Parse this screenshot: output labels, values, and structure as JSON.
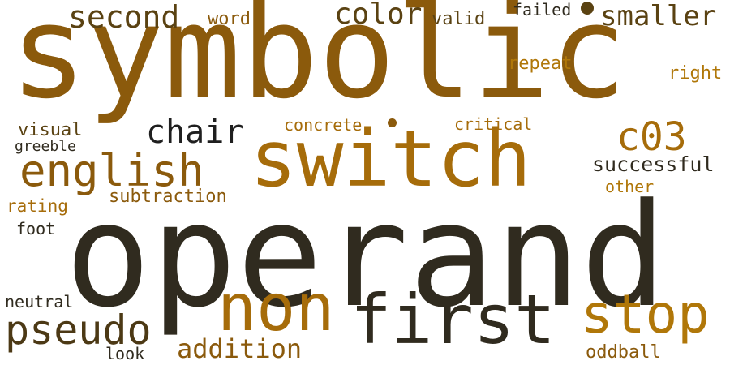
{
  "palette": {
    "dark": "#302b1f",
    "brown": "#8b5a0c",
    "gold": "#b07709",
    "olive": "#5a4212",
    "black": "#1f1f1f"
  },
  "words": [
    {
      "text": "symbolic",
      "color": "#8b5a0c"
    },
    {
      "text": "operand",
      "color": "#302b1f"
    },
    {
      "text": "switch",
      "color": "#a66c0a"
    },
    {
      "text": "first",
      "color": "#302b1f"
    },
    {
      "text": "non",
      "color": "#a66c0a"
    },
    {
      "text": "stop",
      "color": "#b07709"
    },
    {
      "text": "pseudo",
      "color": "#4c3915"
    },
    {
      "text": "english",
      "color": "#8b5a0c"
    },
    {
      "text": "c03",
      "color": "#a66c0a"
    },
    {
      "text": "chair",
      "color": "#1f1f1f"
    },
    {
      "text": "second",
      "color": "#5a4212"
    },
    {
      "text": "color",
      "color": "#5a4212"
    },
    {
      "text": "smaller",
      "color": "#5a4212"
    },
    {
      "text": "addition",
      "color": "#8b5a0c"
    },
    {
      "text": "successful",
      "color": "#302b1f"
    },
    {
      "text": "subtraction",
      "color": "#8b5a0c"
    },
    {
      "text": "concrete",
      "color": "#a66c0a"
    },
    {
      "text": "critical",
      "color": "#a66c0a"
    },
    {
      "text": "visual",
      "color": "#5a4212"
    },
    {
      "text": "greeble",
      "color": "#302b1f"
    },
    {
      "text": "rating",
      "color": "#a66c0a"
    },
    {
      "text": "foot",
      "color": "#302b1f"
    },
    {
      "text": "neutral",
      "color": "#302b1f"
    },
    {
      "text": "look",
      "color": "#302b1f"
    },
    {
      "text": "oddball",
      "color": "#8b5a0c"
    },
    {
      "text": "other",
      "color": "#b07709"
    },
    {
      "text": "right",
      "color": "#b07709"
    },
    {
      "text": "repeat",
      "color": "#b07709"
    },
    {
      "text": "word",
      "color": "#8b5a0c"
    },
    {
      "text": "valid",
      "color": "#5a4212"
    },
    {
      "text": "failed",
      "color": "#302b1f"
    }
  ],
  "dots": [
    {
      "color": "#5a4212"
    },
    {
      "color": "#8b5a0c"
    }
  ]
}
